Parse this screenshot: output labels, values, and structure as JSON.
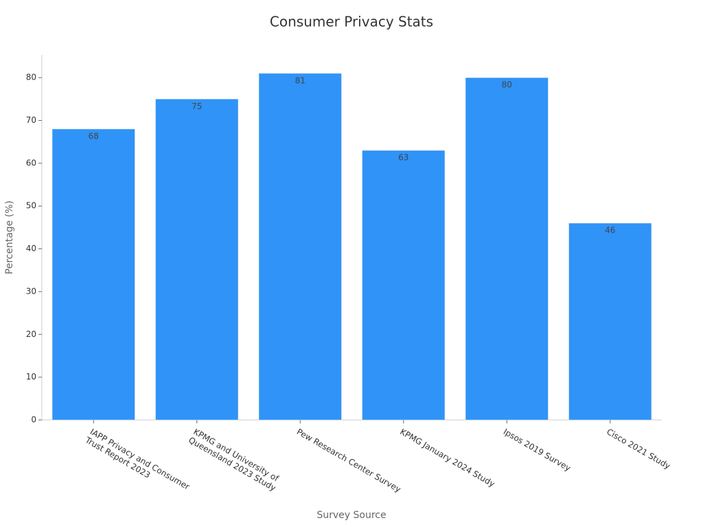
{
  "chart_data": {
    "type": "bar",
    "title": "Consumer Privacy Stats",
    "x_label": "Survey Source",
    "y_label": "Percentage (%)",
    "categories": [
      "IAPP Privacy and Consumer\nTrust Report 2023",
      "KPMG and University of\nQueensland 2023 Study",
      "Pew Research Center Survey",
      "KPMG January 2024 Study",
      "Ipsos 2019 Survey",
      "Cisco 2021 Study"
    ],
    "values": [
      68,
      75,
      81,
      63,
      80,
      46
    ],
    "color": "#2f93f8",
    "ylim": [
      0,
      85
    ],
    "yticks": [
      0,
      10,
      20,
      30,
      40,
      50,
      60,
      70,
      80
    ],
    "grid": false
  }
}
